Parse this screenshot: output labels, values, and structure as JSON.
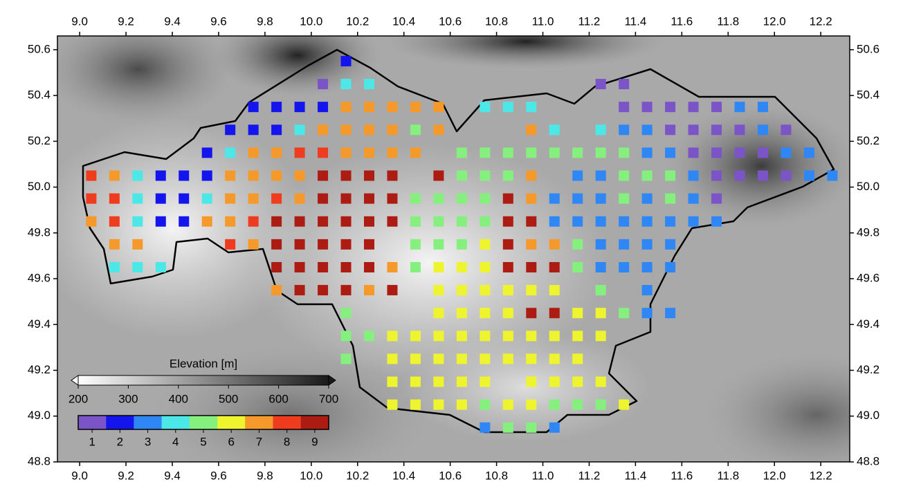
{
  "chart_data": {
    "type": "grid-map",
    "xlim": [
      8.904,
      12.325
    ],
    "ylim": [
      48.8,
      50.66
    ],
    "xticks": [
      {
        "value": 9,
        "label": "9.0"
      },
      9.2,
      9.4,
      9.6,
      9.8,
      {
        "value": 10,
        "label": "10.0"
      },
      10.2,
      10.4,
      10.6,
      10.8,
      {
        "value": 11,
        "label": "11.0"
      },
      11.2,
      11.4,
      11.6,
      11.8,
      {
        "value": 12,
        "label": "12.0"
      },
      12.2
    ],
    "yticks": [
      48.8,
      {
        "value": 49,
        "label": "49.0"
      },
      49.2,
      49.4,
      49.6,
      49.8,
      {
        "value": 50,
        "label": "50.0"
      },
      50.2,
      50.4,
      50.6
    ],
    "elevation_legend": {
      "title": "Elevation [m]",
      "range": [
        200,
        700
      ],
      "ticks": [
        200,
        300,
        400,
        500,
        600,
        700
      ]
    },
    "class_legend": {
      "labels": [
        1,
        2,
        3,
        4,
        5,
        6,
        7,
        8,
        9
      ],
      "colors": [
        "#7b55c8",
        "#1414ee",
        "#2f86f5",
        "#4ce8e8",
        "#86f07e",
        "#eef52e",
        "#f59a2a",
        "#ef3b1e",
        "#ad1c12"
      ]
    },
    "rows": [
      {
        "lat": 50.55,
        "lons": [
          10.15
        ],
        "classes": [
          2
        ]
      },
      {
        "lat": 50.45,
        "lons": [
          10.05,
          10.15,
          10.25,
          11.25,
          11.35
        ],
        "classes": [
          1,
          4,
          4,
          1,
          1
        ]
      },
      {
        "lat": 50.35,
        "lons": [
          9.75,
          9.85,
          9.95,
          10.05,
          10.15,
          10.25,
          10.35,
          10.45,
          10.55,
          10.75,
          10.85,
          10.95,
          11.35,
          11.45,
          11.55,
          11.65,
          11.75,
          11.85,
          11.95
        ],
        "classes": [
          2,
          2,
          2,
          2,
          7,
          7,
          7,
          7,
          7,
          4,
          4,
          4,
          1,
          1,
          1,
          1,
          1,
          3,
          3
        ]
      },
      {
        "lat": 50.25,
        "lons": [
          9.65,
          9.75,
          9.85,
          9.95,
          10.05,
          10.15,
          10.25,
          10.35,
          10.45,
          10.55,
          10.95,
          11.05,
          11.25,
          11.35,
          11.45,
          11.55,
          11.65,
          11.75,
          11.85,
          11.95,
          12.05
        ],
        "classes": [
          2,
          2,
          2,
          4,
          7,
          7,
          7,
          7,
          5,
          7,
          7,
          4,
          4,
          3,
          3,
          1,
          1,
          1,
          1,
          3,
          1
        ]
      },
      {
        "lat": 50.15,
        "lons": [
          9.55,
          9.65,
          9.75,
          9.85,
          9.95,
          10.05,
          10.15,
          10.25,
          10.35,
          10.45,
          10.65,
          10.75,
          10.85,
          10.95,
          11.05,
          11.15,
          11.25,
          11.35,
          11.45,
          11.55,
          11.65,
          11.75,
          11.85,
          11.95,
          12.05,
          12.15
        ],
        "classes": [
          2,
          4,
          7,
          7,
          8,
          8,
          7,
          7,
          7,
          7,
          5,
          5,
          5,
          5,
          5,
          5,
          5,
          5,
          3,
          3,
          1,
          1,
          1,
          1,
          3,
          3
        ]
      },
      {
        "lat": 50.05,
        "lons": [
          9.05,
          9.15,
          9.25,
          9.35,
          9.45,
          9.55,
          9.65,
          9.75,
          9.85,
          9.95,
          10.05,
          10.15,
          10.25,
          10.35,
          10.55,
          10.65,
          10.75,
          10.85,
          10.95,
          11.15,
          11.25,
          11.35,
          11.45,
          11.55,
          11.65,
          11.75,
          11.85,
          11.95,
          12.05,
          12.15,
          12.25
        ],
        "classes": [
          8,
          7,
          4,
          2,
          2,
          2,
          7,
          7,
          7,
          7,
          9,
          9,
          9,
          9,
          9,
          5,
          5,
          5,
          7,
          3,
          3,
          5,
          5,
          5,
          3,
          1,
          1,
          1,
          1,
          3,
          3
        ]
      },
      {
        "lat": 49.95,
        "lons": [
          9.05,
          9.15,
          9.25,
          9.35,
          9.45,
          9.55,
          9.65,
          9.75,
          9.85,
          9.95,
          10.05,
          10.15,
          10.25,
          10.35,
          10.45,
          10.55,
          10.65,
          10.75,
          10.85,
          10.95,
          11.05,
          11.15,
          11.25,
          11.35,
          11.45,
          11.55,
          11.65,
          11.75
        ],
        "classes": [
          8,
          8,
          4,
          2,
          2,
          4,
          7,
          7,
          8,
          7,
          9,
          9,
          9,
          9,
          5,
          5,
          5,
          5,
          9,
          7,
          3,
          3,
          3,
          5,
          3,
          5,
          3,
          1
        ]
      },
      {
        "lat": 49.85,
        "lons": [
          9.05,
          9.15,
          9.25,
          9.35,
          9.45,
          9.55,
          9.65,
          9.75,
          9.85,
          9.95,
          10.05,
          10.15,
          10.25,
          10.35,
          10.45,
          10.55,
          10.65,
          10.75,
          10.85,
          10.95,
          11.05,
          11.15,
          11.25,
          11.35,
          11.45,
          11.55,
          11.65,
          11.75
        ],
        "classes": [
          7,
          8,
          4,
          2,
          2,
          7,
          7,
          8,
          9,
          9,
          9,
          9,
          9,
          9,
          5,
          5,
          5,
          5,
          9,
          9,
          3,
          3,
          3,
          3,
          3,
          3,
          3,
          3
        ]
      },
      {
        "lat": 49.75,
        "lons": [
          9.15,
          9.25,
          9.65,
          9.75,
          9.85,
          9.95,
          10.05,
          10.15,
          10.25,
          10.45,
          10.55,
          10.65,
          10.75,
          10.85,
          10.95,
          11.05,
          11.15,
          11.25,
          11.35,
          11.45,
          11.55
        ],
        "classes": [
          7,
          7,
          8,
          7,
          9,
          9,
          9,
          9,
          9,
          5,
          5,
          5,
          6,
          9,
          7,
          7,
          5,
          3,
          3,
          3,
          3
        ]
      },
      {
        "lat": 49.65,
        "lons": [
          9.15,
          9.25,
          9.35,
          9.85,
          9.95,
          10.05,
          10.15,
          10.25,
          10.35,
          10.45,
          10.55,
          10.65,
          10.75,
          10.85,
          10.95,
          11.05,
          11.15,
          11.25,
          11.35,
          11.45,
          11.55
        ],
        "classes": [
          4,
          4,
          4,
          9,
          9,
          9,
          9,
          9,
          7,
          5,
          6,
          6,
          6,
          9,
          9,
          9,
          5,
          3,
          3,
          3,
          3
        ]
      },
      {
        "lat": 49.55,
        "lons": [
          9.85,
          9.95,
          10.05,
          10.15,
          10.25,
          10.35,
          10.55,
          10.65,
          10.75,
          10.85,
          10.95,
          11.05,
          11.25,
          11.45
        ],
        "classes": [
          7,
          9,
          9,
          9,
          7,
          9,
          6,
          6,
          6,
          6,
          6,
          6,
          5,
          3
        ]
      },
      {
        "lat": 49.45,
        "lons": [
          10.15,
          10.55,
          10.65,
          10.75,
          10.85,
          10.95,
          11.05,
          11.15,
          11.25,
          11.35,
          11.45,
          11.55
        ],
        "classes": [
          5,
          6,
          6,
          6,
          6,
          9,
          9,
          6,
          6,
          5,
          3,
          3
        ]
      },
      {
        "lat": 49.35,
        "lons": [
          10.15,
          10.25,
          10.35,
          10.45,
          10.55,
          10.65,
          10.75,
          10.85,
          10.95,
          11.05,
          11.15,
          11.25
        ],
        "classes": [
          5,
          5,
          6,
          6,
          6,
          6,
          6,
          6,
          6,
          6,
          6,
          6
        ]
      },
      {
        "lat": 49.25,
        "lons": [
          10.15,
          10.35,
          10.45,
          10.55,
          10.65,
          10.75,
          10.85,
          10.95,
          11.05,
          11.15
        ],
        "classes": [
          5,
          6,
          6,
          6,
          6,
          6,
          6,
          6,
          6,
          6
        ]
      },
      {
        "lat": 49.15,
        "lons": [
          10.35,
          10.45,
          10.55,
          10.65,
          10.75,
          10.95,
          11.05,
          11.15,
          11.25
        ],
        "classes": [
          6,
          6,
          6,
          6,
          6,
          6,
          6,
          6,
          6
        ]
      },
      {
        "lat": 49.05,
        "lons": [
          10.35,
          10.45,
          10.55,
          10.65,
          10.75,
          10.85,
          10.95,
          11.05,
          11.15,
          11.25,
          11.35
        ],
        "classes": [
          6,
          6,
          6,
          6,
          5,
          6,
          6,
          5,
          5,
          5,
          6
        ]
      },
      {
        "lat": 48.95,
        "lons": [
          10.75,
          10.85,
          10.95,
          11.05
        ],
        "classes": [
          3,
          5,
          5,
          3
        ]
      }
    ]
  }
}
